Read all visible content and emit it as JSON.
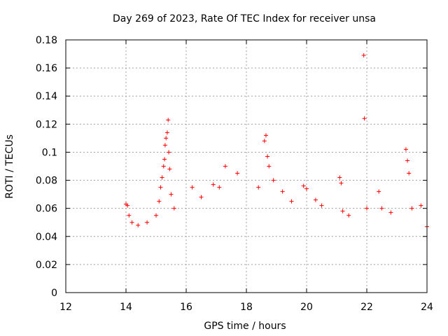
{
  "chart_data": {
    "type": "scatter",
    "title": "Day 269 of 2023, Rate Of TEC Index for receiver unsa",
    "xlabel": "GPS time / hours",
    "ylabel": "ROTI / TECUs",
    "xlim": [
      12,
      24
    ],
    "ylim": [
      0,
      0.18
    ],
    "xticks": [
      "12",
      "14",
      "16",
      "18",
      "20",
      "22",
      "24"
    ],
    "yticks": [
      "0",
      "0.02",
      "0.04",
      "0.06",
      "0.08",
      "0.1",
      "0.12",
      "0.14",
      "0.16",
      "0.18"
    ],
    "grid": true,
    "marker": "+",
    "series": [
      {
        "name": "ROTI",
        "color": "#ff0000",
        "points": [
          [
            14.0,
            0.063
          ],
          [
            14.05,
            0.062
          ],
          [
            14.1,
            0.055
          ],
          [
            14.2,
            0.05
          ],
          [
            14.4,
            0.048
          ],
          [
            14.7,
            0.05
          ],
          [
            15.0,
            0.055
          ],
          [
            15.1,
            0.065
          ],
          [
            15.15,
            0.075
          ],
          [
            15.2,
            0.082
          ],
          [
            15.25,
            0.09
          ],
          [
            15.28,
            0.095
          ],
          [
            15.3,
            0.105
          ],
          [
            15.33,
            0.11
          ],
          [
            15.37,
            0.114
          ],
          [
            15.4,
            0.123
          ],
          [
            15.42,
            0.1
          ],
          [
            15.45,
            0.088
          ],
          [
            15.5,
            0.07
          ],
          [
            15.6,
            0.06
          ],
          [
            16.2,
            0.075
          ],
          [
            16.5,
            0.068
          ],
          [
            16.9,
            0.077
          ],
          [
            17.1,
            0.075
          ],
          [
            17.3,
            0.09
          ],
          [
            17.7,
            0.085
          ],
          [
            18.4,
            0.075
          ],
          [
            18.6,
            0.108
          ],
          [
            18.65,
            0.112
          ],
          [
            18.7,
            0.097
          ],
          [
            18.75,
            0.09
          ],
          [
            18.9,
            0.08
          ],
          [
            19.2,
            0.072
          ],
          [
            19.5,
            0.065
          ],
          [
            19.9,
            0.076
          ],
          [
            20.0,
            0.074
          ],
          [
            20.3,
            0.066
          ],
          [
            20.5,
            0.062
          ],
          [
            21.1,
            0.082
          ],
          [
            21.15,
            0.078
          ],
          [
            21.2,
            0.058
          ],
          [
            21.4,
            0.055
          ],
          [
            21.9,
            0.169
          ],
          [
            21.92,
            0.124
          ],
          [
            22.0,
            0.06
          ],
          [
            22.4,
            0.072
          ],
          [
            22.5,
            0.06
          ],
          [
            22.8,
            0.057
          ],
          [
            23.3,
            0.102
          ],
          [
            23.35,
            0.094
          ],
          [
            23.4,
            0.085
          ],
          [
            23.5,
            0.06
          ],
          [
            23.8,
            0.062
          ],
          [
            24.0,
            0.047
          ]
        ]
      }
    ]
  }
}
